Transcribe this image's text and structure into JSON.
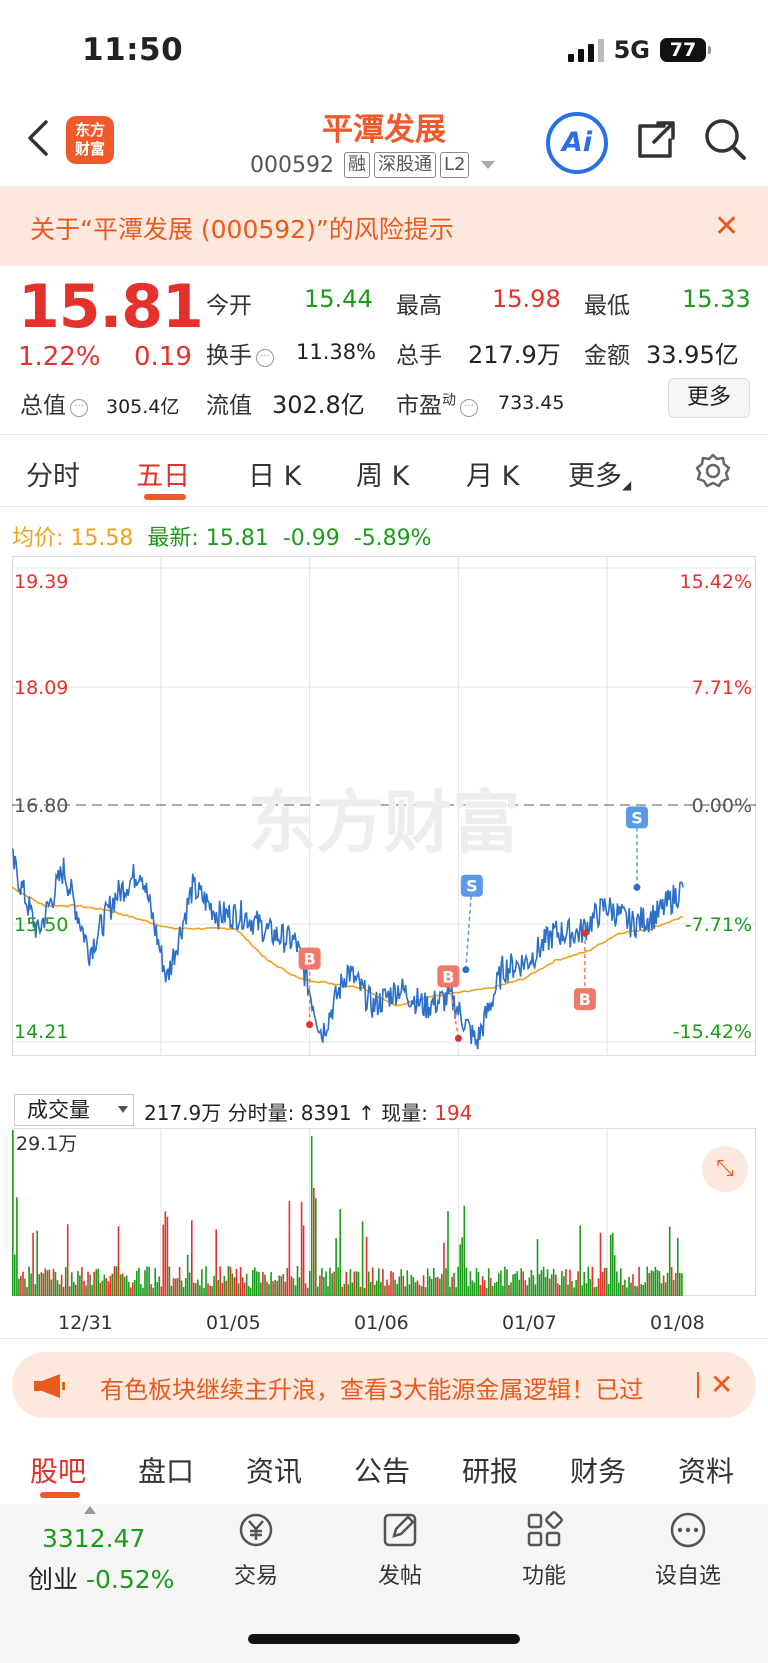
{
  "status": {
    "time": "11:50",
    "network": "5G",
    "battery": "77"
  },
  "header": {
    "logo_line1": "东方",
    "logo_line2": "财富",
    "title": "平潭发展",
    "code": "000592",
    "tags": [
      "融",
      "深股通",
      "L2"
    ],
    "ai_label": "Ai"
  },
  "risk": {
    "text": "关于“平潭发展 (000592)”的风险提示"
  },
  "quote": {
    "price": "15.81",
    "change_pct": "1.22%",
    "change": "0.19",
    "open_label": "今开",
    "open": "15.44",
    "high_label": "最高",
    "high": "15.98",
    "low_label": "最低",
    "low": "15.33",
    "turnover_label": "换手",
    "turnover": "11.38%",
    "volume_label": "总手",
    "volume": "217.9万",
    "amount_label": "金额",
    "amount": "33.95亿",
    "mcap_label": "总值",
    "mcap": "305.4亿",
    "float_label": "流值",
    "float": "302.8亿",
    "pe_label": "市盈",
    "pe_sup": "动",
    "pe": "733.45",
    "more_label": "更多"
  },
  "tabs": [
    "分时",
    "五日",
    "日 K",
    "周 K",
    "月 K",
    "更多"
  ],
  "avg": {
    "avg_label": "均价:",
    "avg": "15.58",
    "latest_label": "最新:",
    "latest": "15.81",
    "diff": "-0.99",
    "diff_pct": "-5.89%"
  },
  "chart_data": {
    "type": "line",
    "title": "",
    "y_labels_left": [
      "19.39",
      "18.09",
      "16.80",
      "15.50",
      "14.21"
    ],
    "y_labels_right": [
      "15.42%",
      "7.71%",
      "0.00%",
      "-7.71%",
      "-15.42%"
    ],
    "ylim": [
      14.21,
      19.39
    ],
    "reference_close": 16.8,
    "x_labels": [
      "12/31",
      "01/05",
      "01/06",
      "01/07",
      "01/08"
    ],
    "days": [
      "12/31",
      "01/05",
      "01/06",
      "01/07",
      "01/08"
    ],
    "series": [
      {
        "price_keypoints": [
          16.2,
          15.4,
          16.1,
          15.2,
          15.8,
          16.1,
          14.9,
          15.9,
          15.6,
          15.6,
          15.4,
          15.3,
          14.3,
          15.0,
          14.6,
          14.8,
          14.6,
          14.7,
          14.2,
          15.0,
          15.1,
          15.4,
          15.4,
          15.7,
          15.5,
          15.6,
          15.9
        ]
      },
      {
        "avg_keypoints": [
          15.9,
          15.7,
          15.7,
          15.65,
          15.55,
          15.45,
          15.45,
          15.45,
          15.1,
          14.9,
          14.85,
          14.8,
          14.6,
          14.7,
          14.75,
          14.8,
          14.9,
          15.1,
          15.2,
          15.4,
          15.45,
          15.58
        ]
      }
    ],
    "markers": [
      {
        "label": "B",
        "type": "buy",
        "price": 14.4
      },
      {
        "label": "B",
        "type": "buy",
        "price": 14.25
      },
      {
        "label": "S",
        "type": "sell",
        "price": 15.0
      },
      {
        "label": "B",
        "type": "buy",
        "price": 15.4
      },
      {
        "label": "S",
        "type": "sell",
        "price": 15.9
      }
    ],
    "watermark": "东方财富"
  },
  "volume": {
    "selector": "成交量",
    "total": "217.9万",
    "tick_label": "分时量:",
    "tick_value": "8391",
    "arrow": "↑",
    "now_label": "现量:",
    "now_value": "194",
    "max_label": "29.1万"
  },
  "promo": {
    "text": "有色板块继续主升浪，查看3大能源金属逻辑！已过"
  },
  "bottom_tabs": [
    "股吧",
    "盘口",
    "资讯",
    "公告",
    "研报",
    "财务",
    "资料"
  ],
  "footer": {
    "index_value": "3312.47",
    "index_name": "创业",
    "index_change": "-0.52%",
    "buttons": [
      "交易",
      "发帖",
      "功能",
      "设自选"
    ]
  }
}
